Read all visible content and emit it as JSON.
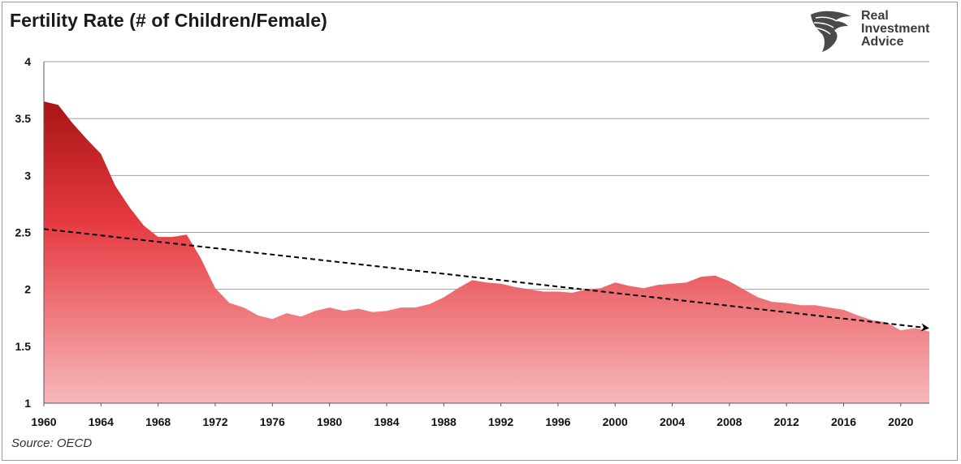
{
  "title": "Fertility Rate (# of Children/Female)",
  "source": "Source: OECD",
  "logo": {
    "line1": "Real",
    "line2": "Investment",
    "line3": "Advice"
  },
  "colors": {
    "area_top": "#a81414",
    "area_mid": "#e63a40",
    "area_bottom": "#f6b3b6",
    "trend": "#000000",
    "grid": "#a0a0a0"
  },
  "chart_data": {
    "type": "area",
    "title": "Fertility Rate (# of Children/Female)",
    "xlabel": "",
    "ylabel": "",
    "ylim": [
      1,
      4
    ],
    "xlim": [
      1960,
      2022
    ],
    "yticks": [
      "1",
      "1.5",
      "2",
      "2.5",
      "3",
      "3.5",
      "4"
    ],
    "xticks": [
      "1960",
      "1964",
      "1968",
      "1972",
      "1976",
      "1980",
      "1984",
      "1988",
      "1992",
      "1996",
      "2000",
      "2004",
      "2008",
      "2012",
      "2016",
      "2020"
    ],
    "grid": true,
    "legend": "none",
    "series": [
      {
        "x": [
          1960,
          1961,
          1962,
          1963,
          1964,
          1965,
          1966,
          1967,
          1968,
          1969,
          1970,
          1971,
          1972,
          1973,
          1974,
          1975,
          1976,
          1977,
          1978,
          1979,
          1980,
          1981,
          1982,
          1983,
          1984,
          1985,
          1986,
          1987,
          1988,
          1989,
          1990,
          1991,
          1992,
          1993,
          1994,
          1995,
          1996,
          1997,
          1998,
          1999,
          2000,
          2001,
          2002,
          2003,
          2004,
          2005,
          2006,
          2007,
          2008,
          2009,
          2010,
          2011,
          2012,
          2013,
          2014,
          2015,
          2016,
          2017,
          2018,
          2019,
          2020,
          2021,
          2022
        ],
        "values": [
          3.65,
          3.62,
          3.46,
          3.32,
          3.19,
          2.91,
          2.72,
          2.56,
          2.46,
          2.46,
          2.48,
          2.27,
          2.01,
          1.88,
          1.84,
          1.77,
          1.74,
          1.79,
          1.76,
          1.81,
          1.84,
          1.81,
          1.83,
          1.8,
          1.81,
          1.84,
          1.84,
          1.87,
          1.93,
          2.01,
          2.08,
          2.06,
          2.05,
          2.02,
          2.0,
          1.98,
          1.98,
          1.97,
          2.0,
          2.01,
          2.06,
          2.03,
          2.01,
          2.04,
          2.05,
          2.06,
          2.11,
          2.12,
          2.07,
          2.0,
          1.93,
          1.89,
          1.88,
          1.86,
          1.86,
          1.84,
          1.82,
          1.77,
          1.73,
          1.71,
          1.64,
          1.66,
          1.63
        ]
      }
    ],
    "trendline": {
      "x": [
        1960,
        2022
      ],
      "values": [
        2.53,
        1.66
      ],
      "style": "dashed",
      "arrow": "end"
    }
  }
}
